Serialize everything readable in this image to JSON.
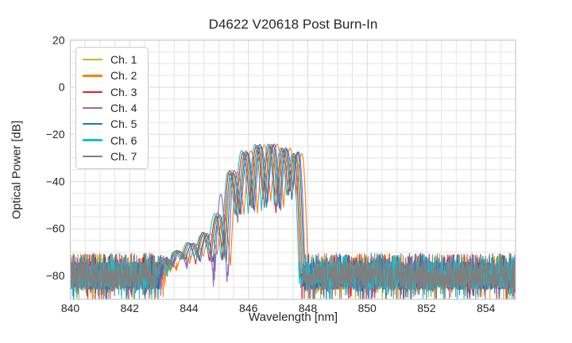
{
  "chart_data": {
    "type": "line",
    "title": "D4622 V20618 Post Burn-In",
    "xlabel": "Wavelength [nm]",
    "ylabel": "Optical Power [dB]",
    "xlim": [
      840,
      855
    ],
    "ylim": [
      -90,
      20
    ],
    "x_ticks": [
      840,
      842,
      844,
      846,
      848,
      850,
      852,
      854
    ],
    "y_ticks": [
      20,
      0,
      -20,
      -40,
      -60,
      -80
    ],
    "x_minor_step": 0.5,
    "y_minor_step": 5,
    "grid": true,
    "legend_position": "upper left",
    "background": "#ffffff",
    "grid_color": "#dadada",
    "spine_color": "#c9c9c9",
    "text_color": "#262626",
    "noise_floor": {
      "mean_db": -80,
      "spread_db": 6.5,
      "spike_top_db": -70.5
    },
    "spectral_envelope": {
      "lobe_centers_nm": [
        843.15,
        843.6,
        844.05,
        844.52,
        844.97,
        845.42,
        845.88,
        846.33,
        846.77,
        847.2,
        847.6
      ],
      "lobe_peaks_db": [
        -73,
        -70,
        -66.5,
        -62,
        -54,
        -35.5,
        -27.5,
        -25,
        -24.6,
        -25.8,
        -28.2
      ],
      "notch_depths_db": [
        -78,
        -75,
        -73.5,
        -72,
        -74,
        -56,
        -52.5,
        -50,
        -52,
        -46
      ],
      "edge_rolloff_nm": 0.25
    },
    "series": [
      {
        "name": "Ch. 1",
        "color": "#bcbd22",
        "shift_nm": 0.02
      },
      {
        "name": "Ch. 2",
        "color": "#ff7f0e",
        "shift_nm": 0.2
      },
      {
        "name": "Ch. 3",
        "color": "#d62728",
        "shift_nm": -0.06
      },
      {
        "name": "Ch. 4",
        "color": "#9467bd",
        "shift_nm": 0.1,
        "lobe_peak_overrides": {
          "4": -45.2
        },
        "notch_overrides": {
          "3": -89,
          "4": -89
        }
      },
      {
        "name": "Ch. 5",
        "color": "#1f77b4",
        "shift_nm": 0.06
      },
      {
        "name": "Ch. 6",
        "color": "#17becf",
        "shift_nm": -0.11
      },
      {
        "name": "Ch. 7",
        "color": "#7f7f7f",
        "shift_nm": -0.01
      }
    ]
  }
}
